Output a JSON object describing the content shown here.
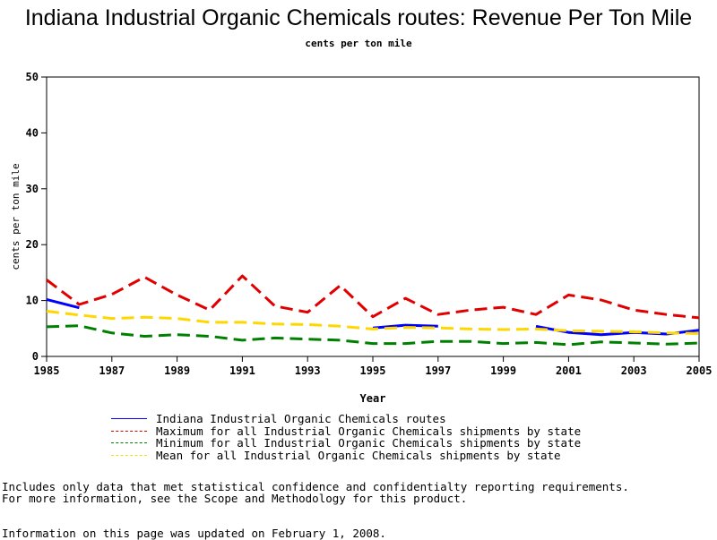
{
  "chart_data": {
    "type": "line",
    "title": "Indiana Industrial Organic Chemicals routes: Revenue Per Ton Mile",
    "subtitle": "cents per ton mile",
    "xlabel": "Year",
    "ylabel": "cents per ton mile",
    "xlim": [
      1985,
      2005
    ],
    "ylim": [
      0,
      50
    ],
    "x_ticks": [
      1985,
      1987,
      1989,
      1991,
      1993,
      1995,
      1997,
      1999,
      2001,
      2003,
      2005
    ],
    "y_ticks": [
      0,
      10,
      20,
      30,
      40,
      50
    ],
    "grid": false,
    "legend_position": "bottom",
    "x": [
      1985,
      1986,
      1987,
      1988,
      1989,
      1990,
      1991,
      1992,
      1993,
      1994,
      1995,
      1996,
      1997,
      1998,
      1999,
      2000,
      2001,
      2002,
      2003,
      2004,
      2005
    ],
    "series": [
      {
        "name": "Indiana Industrial Organic Chemicals routes",
        "color": "#0000ff",
        "style": "solid",
        "values": [
          10.2,
          8.7,
          null,
          null,
          null,
          null,
          null,
          null,
          null,
          null,
          5.1,
          5.6,
          5.4,
          null,
          null,
          5.4,
          4.3,
          3.9,
          4.3,
          4.0,
          4.7
        ]
      },
      {
        "name": "Maximum for all Industrial Organic Chemicals shipments by state",
        "color": "#e00000",
        "style": "dashed",
        "values": [
          13.7,
          9.3,
          11.1,
          14.2,
          11.0,
          8.3,
          14.4,
          9.0,
          7.9,
          12.7,
          7.1,
          10.4,
          7.5,
          8.3,
          8.8,
          7.5,
          11.0,
          10.1,
          8.3,
          7.5,
          6.9
        ]
      },
      {
        "name": "Minimum for all Industrial Organic Chemicals shipments by state",
        "color": "#008000",
        "style": "dashed",
        "values": [
          5.3,
          5.5,
          4.2,
          3.6,
          3.9,
          3.6,
          2.9,
          3.3,
          3.1,
          2.9,
          2.3,
          2.3,
          2.7,
          2.7,
          2.3,
          2.5,
          2.1,
          2.6,
          2.4,
          2.2,
          2.4
        ]
      },
      {
        "name": "Mean for all Industrial Organic Chemicals shipments by state",
        "color": "#ffd700",
        "style": "dashed",
        "values": [
          8.1,
          7.4,
          6.8,
          7.0,
          6.8,
          6.1,
          6.1,
          5.8,
          5.7,
          5.4,
          4.9,
          5.2,
          5.1,
          4.9,
          4.8,
          4.9,
          4.6,
          4.5,
          4.4,
          4.2,
          4.1
        ]
      }
    ]
  },
  "notes": {
    "line1": "Includes only data that met statistical confidence and confidentialty reporting requirements.",
    "line2": "For more information, see the Scope and Methodology for this product.",
    "updated": "Information on this page was updated on February 1, 2008."
  }
}
